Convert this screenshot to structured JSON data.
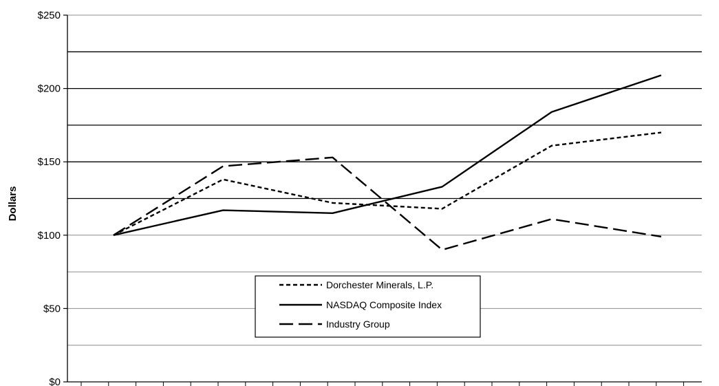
{
  "chart_data": {
    "type": "line",
    "title": "",
    "xlabel": "",
    "ylabel": "Dollars",
    "ylim": [
      0,
      250
    ],
    "y_tick_step": 50,
    "y_ticks": [
      "$0",
      "$50",
      "$100",
      "$150",
      "$200",
      "$250"
    ],
    "grid": true,
    "legend_position": "lower-center",
    "x": [
      0,
      1,
      2,
      3,
      4,
      5
    ],
    "series": [
      {
        "name": "Dorchester Minerals, L.P.",
        "values": [
          100,
          138,
          122,
          118,
          161,
          170
        ],
        "style": "dotted",
        "color": "#000000"
      },
      {
        "name": "NASDAQ Composite Index",
        "values": [
          100,
          117,
          115,
          133,
          184,
          209
        ],
        "style": "solid",
        "color": "#000000"
      },
      {
        "name": "Industry Group",
        "values": [
          100,
          147,
          153,
          90,
          111,
          99
        ],
        "style": "dashed",
        "color": "#000000"
      }
    ]
  }
}
